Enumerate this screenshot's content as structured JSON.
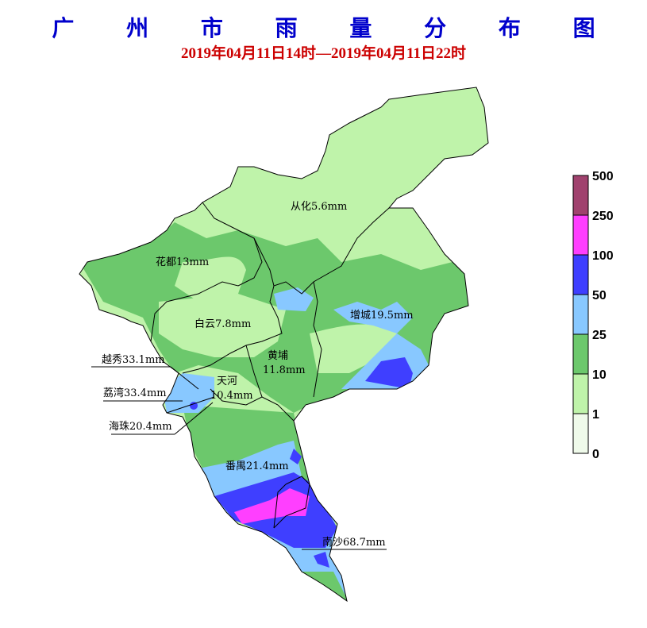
{
  "title": "广 州 市 雨 量 分 布 图",
  "subtitle": "2019年04月11日14时—2019年04月11日22时",
  "legend": {
    "levels": [
      {
        "from": "0",
        "to": "1",
        "color": "#effaea"
      },
      {
        "from": "1",
        "to": "10",
        "color": "#bff3aa"
      },
      {
        "from": "10",
        "to": "25",
        "color": "#6cc86c"
      },
      {
        "from": "25",
        "to": "50",
        "color": "#88c8ff"
      },
      {
        "from": "50",
        "to": "100",
        "color": "#3f3fff"
      },
      {
        "from": "100",
        "to": "250",
        "color": "#ff3fff"
      },
      {
        "from": "250",
        "to": "500",
        "color": "#a0426e"
      }
    ],
    "ticks": [
      "0",
      "1",
      "10",
      "25",
      "50",
      "100",
      "250",
      "500"
    ]
  },
  "districts": [
    {
      "name": "从化5.6mm"
    },
    {
      "name": "花都13mm"
    },
    {
      "name": "增城19.5mm"
    },
    {
      "name": "白云7.8mm"
    },
    {
      "name": "黄埔"
    },
    {
      "name": "11.8mm"
    },
    {
      "name": "天河"
    },
    {
      "name": "10.4mm"
    },
    {
      "name": "越秀33.1mm"
    },
    {
      "name": "荔湾33.4mm"
    },
    {
      "name": "海珠20.4mm"
    },
    {
      "name": "番禺21.4mm"
    },
    {
      "name": "南沙68.7mm"
    }
  ]
}
